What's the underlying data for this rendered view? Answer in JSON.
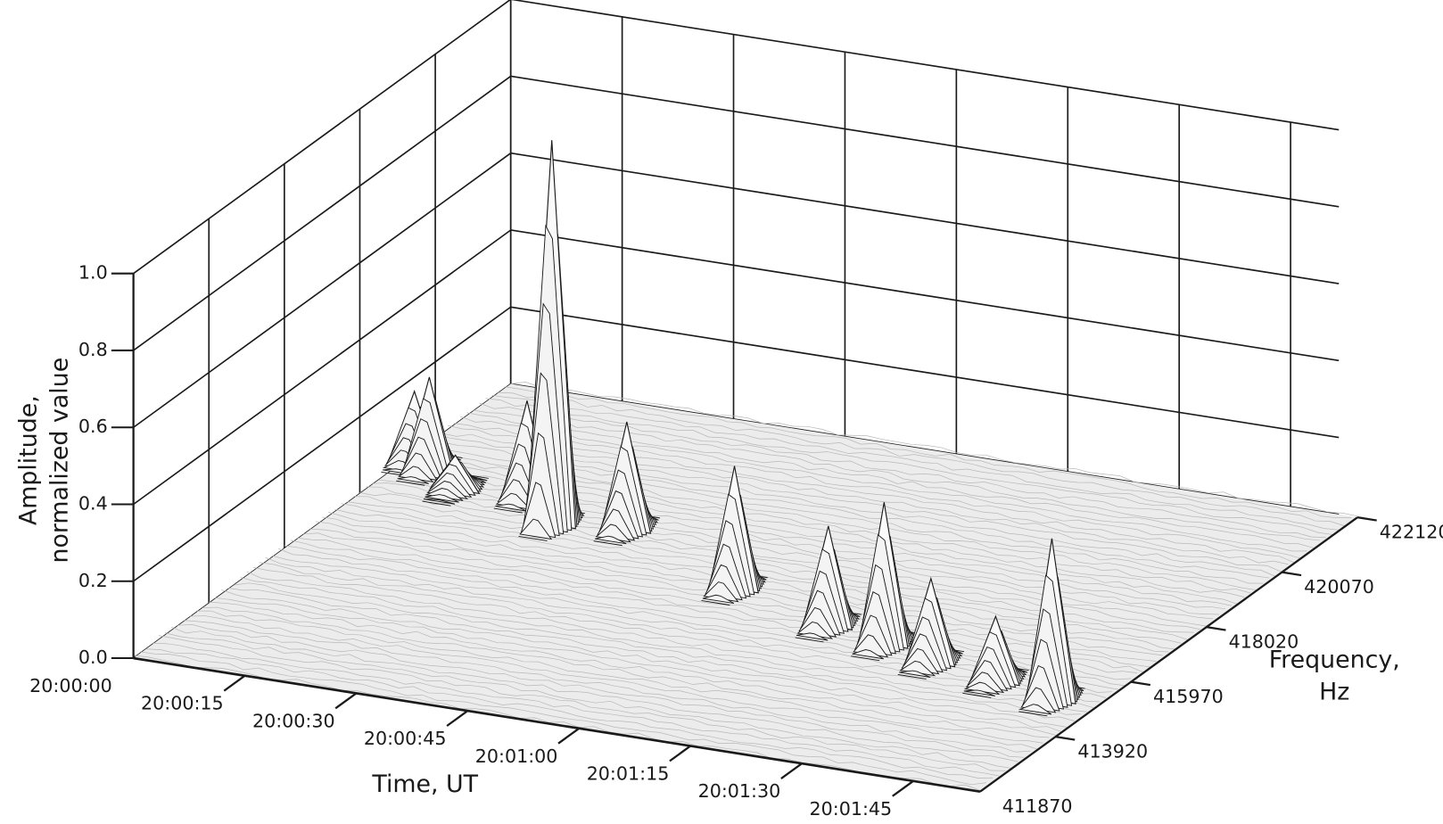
{
  "chart_data": {
    "type": "surface3d",
    "zlabel": [
      "Amplitude,",
      "normalized value"
    ],
    "xlabel": "Time, UT",
    "ylabel": [
      "Frequency,",
      "Hz"
    ],
    "xlim": [
      "20:00:00",
      "20:01:54"
    ],
    "xticks": [
      "20:00:00",
      "20:00:15",
      "20:00:30",
      "20:00:45",
      "20:01:00",
      "20:01:15",
      "20:01:30",
      "20:01:45"
    ],
    "ylim": [
      411870,
      422120
    ],
    "yticks": [
      411870,
      413920,
      415970,
      418020,
      420070,
      422120
    ],
    "zlim": [
      0,
      1
    ],
    "zticks": [
      {
        "value": 0,
        "label": "0.0"
      },
      0.2,
      0.4,
      0.6,
      0.8,
      {
        "value": 1,
        "label": "1.0"
      }
    ],
    "grid": true,
    "color": "#1a1a1a",
    "peaks": [
      {
        "time": "20:00:01",
        "frequency": 419300,
        "amplitude": 0.18
      },
      {
        "time": "20:00:04",
        "frequency": 419100,
        "amplitude": 0.24
      },
      {
        "time": "20:00:10",
        "frequency": 418600,
        "amplitude": 0.09
      },
      {
        "time": "20:00:19",
        "frequency": 418730,
        "amplitude": 0.25
      },
      {
        "time": "20:00:26",
        "frequency": 417990,
        "amplitude": 1.0
      },
      {
        "time": "20:00:35",
        "frequency": 418210,
        "amplitude": 0.28
      },
      {
        "time": "20:00:56",
        "frequency": 416900,
        "amplitude": 0.32
      },
      {
        "time": "20:01:12",
        "frequency": 416220,
        "amplitude": 0.26
      },
      {
        "time": "20:01:21",
        "frequency": 415920,
        "amplitude": 0.37
      },
      {
        "time": "20:01:29",
        "frequency": 415580,
        "amplitude": 0.22
      },
      {
        "time": "20:01:39",
        "frequency": 415320,
        "amplitude": 0.17
      },
      {
        "time": "20:01:48",
        "frequency": 415030,
        "amplitude": 0.42
      }
    ]
  }
}
